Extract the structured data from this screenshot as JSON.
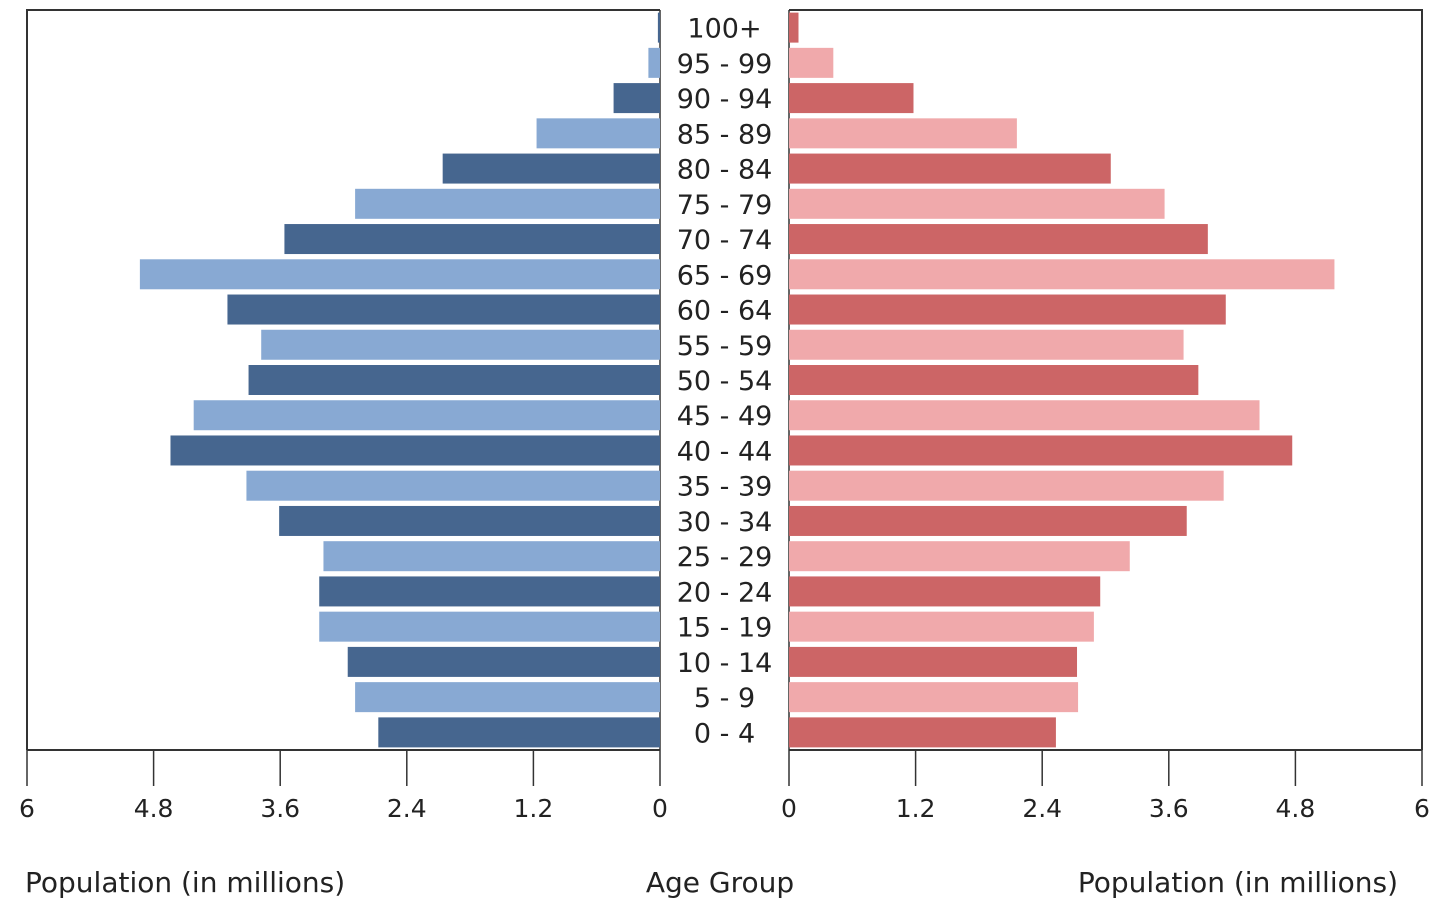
{
  "chart_data": {
    "type": "bar",
    "orientation": "horizontal",
    "subtype": "population-pyramid",
    "title": "",
    "categories": [
      "0 - 4",
      "5 - 9",
      "10 - 14",
      "15 - 19",
      "20 - 24",
      "25 - 29",
      "30 - 34",
      "35 - 39",
      "40 - 44",
      "45 - 49",
      "50 - 54",
      "55 - 59",
      "60 - 64",
      "65 - 69",
      "70 - 74",
      "75 - 79",
      "80 - 84",
      "85 - 89",
      "90 - 94",
      "95 - 99",
      "100+"
    ],
    "series": [
      {
        "side": "left",
        "values": [
          2.67,
          2.89,
          2.96,
          3.23,
          3.23,
          3.19,
          3.61,
          3.92,
          4.64,
          4.42,
          3.9,
          3.78,
          4.1,
          4.93,
          3.56,
          2.89,
          2.06,
          1.17,
          0.44,
          0.11,
          0.02
        ],
        "colors": [
          "#46668f",
          "#88a9d3"
        ]
      },
      {
        "side": "right",
        "values": [
          2.53,
          2.74,
          2.73,
          2.89,
          2.95,
          3.23,
          3.77,
          4.12,
          4.77,
          4.46,
          3.88,
          3.74,
          4.14,
          5.17,
          3.97,
          3.56,
          3.05,
          2.16,
          1.18,
          0.42,
          0.09
        ],
        "colors": [
          "#cc6566",
          "#f0a9ab"
        ]
      }
    ],
    "xlim": [
      0,
      6
    ],
    "left_ticks": [
      "6",
      "4.8",
      "3.6",
      "2.4",
      "1.2",
      "0"
    ],
    "right_ticks": [
      "0",
      "1.2",
      "2.4",
      "3.6",
      "4.8",
      "6"
    ],
    "left_xlabel": "Population (in millions)",
    "center_label": "Age Group",
    "right_xlabel": "Population (in millions)",
    "grid": false,
    "legend": "none"
  }
}
